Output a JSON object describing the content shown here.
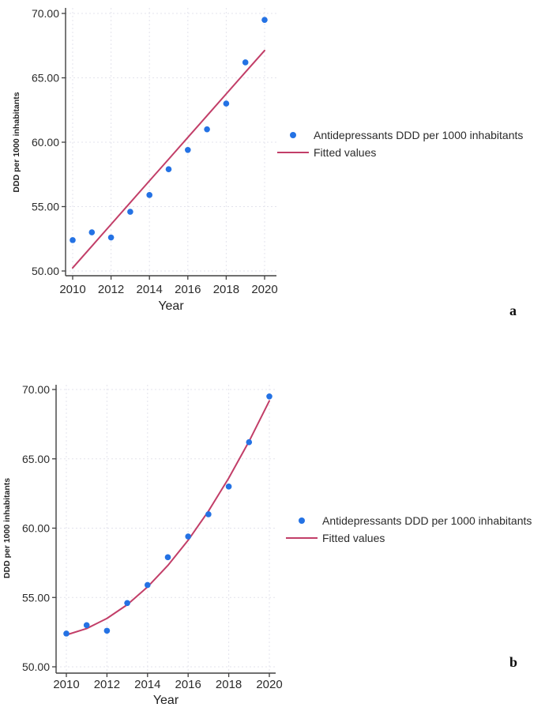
{
  "figures": [
    {
      "corner_label": "a",
      "legend": {
        "items": [
          {
            "marker": "dot-marker-icon",
            "label": "Antidepressants DDD per 1000 inhabitants"
          },
          {
            "marker": "line-marker-icon",
            "label": "Fitted values"
          }
        ]
      }
    },
    {
      "corner_label": "b",
      "legend": {
        "items": [
          {
            "marker": "dot-marker-icon",
            "label": "Antidepressants DDD per 1000 inhabitants"
          },
          {
            "marker": "line-marker-icon",
            "label": "Fitted values"
          }
        ]
      }
    }
  ],
  "colors": {
    "scatter": "#2472e4",
    "fit": "#c23e68",
    "grid": "#e3e3ec",
    "axis": "#404040",
    "tick_text": "#2b2b2b",
    "axis_title_text": "#1f1f1f"
  },
  "chart_data": [
    {
      "id": "a",
      "type": "scatter",
      "title": "",
      "xlabel": "Year",
      "ylabel": "DDD per 1000  inhabitants",
      "x": [
        2010,
        2011,
        2012,
        2013,
        2014,
        2015,
        2016,
        2017,
        2018,
        2019,
        2020
      ],
      "series": [
        {
          "name": "Antidepressants DDD per 1000 inhabitants",
          "style": "points",
          "values": [
            52.4,
            53.0,
            52.6,
            54.6,
            55.9,
            57.9,
            59.4,
            61.0,
            63.0,
            66.2,
            69.5
          ]
        },
        {
          "name": "Fitted values",
          "style": "line",
          "fit": "linear",
          "values": [
            50.24,
            51.93,
            53.62,
            55.31,
            57.0,
            58.68,
            60.37,
            62.06,
            63.75,
            65.44,
            67.12
          ]
        }
      ],
      "xticks": [
        2010,
        2012,
        2014,
        2016,
        2018,
        2020
      ],
      "yticks": [
        50,
        55,
        60,
        65,
        70
      ],
      "ytick_decimals": 2,
      "ylim": [
        50,
        70
      ],
      "xlim": [
        2010,
        2020
      ],
      "grid": "dashed both axes",
      "legend_position": "right"
    },
    {
      "id": "b",
      "type": "scatter",
      "title": "",
      "xlabel": "Year",
      "ylabel": "DDD per 1000  inhabitants",
      "x": [
        2010,
        2011,
        2012,
        2013,
        2014,
        2015,
        2016,
        2017,
        2018,
        2019,
        2020
      ],
      "series": [
        {
          "name": "Antidepressants DDD per 1000 inhabitants",
          "style": "points",
          "values": [
            52.4,
            53.0,
            52.6,
            54.6,
            55.9,
            57.9,
            59.4,
            61.0,
            63.0,
            66.2,
            69.5
          ]
        },
        {
          "name": "Fitted values",
          "style": "line",
          "fit": "quadratic",
          "values": [
            52.3,
            52.76,
            53.49,
            54.48,
            55.76,
            57.31,
            59.13,
            61.23,
            63.61,
            66.26,
            69.18
          ]
        }
      ],
      "xticks": [
        2010,
        2012,
        2014,
        2016,
        2018,
        2020
      ],
      "yticks": [
        50,
        55,
        60,
        65,
        70
      ],
      "ytick_decimals": 2,
      "ylim": [
        50,
        70
      ],
      "xlim": [
        2010,
        2020
      ],
      "grid": "dashed both axes",
      "legend_position": "right"
    }
  ]
}
